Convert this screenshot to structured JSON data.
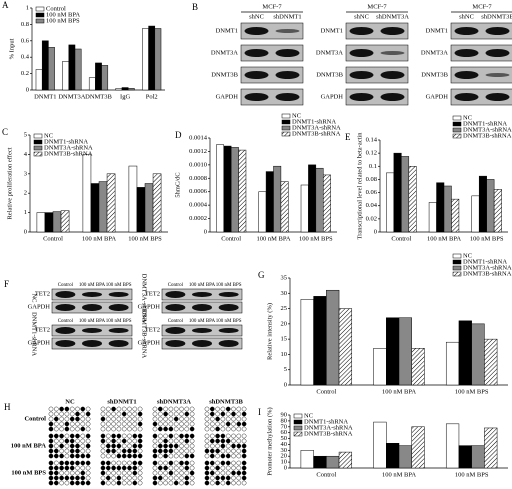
{
  "chart_data": [
    {
      "type": "bar",
      "panel": "A",
      "y_label": "% Input",
      "categories": [
        "DNMT1",
        "DNMT3A",
        "DNMT3B",
        "IgG",
        "Pol2"
      ],
      "series": [
        {
          "name": "Control",
          "color": "#ffffff",
          "values": [
            0.25,
            0.35,
            0.15,
            0.02,
            0.75
          ]
        },
        {
          "name": "100 nM BPA",
          "color": "#000000",
          "values": [
            0.6,
            0.55,
            0.33,
            0.03,
            0.78
          ]
        },
        {
          "name": "100 nM BPS",
          "color": "#888888",
          "values": [
            0.52,
            0.5,
            0.3,
            0.02,
            0.75
          ]
        }
      ],
      "ylim": [
        0,
        1
      ],
      "yticks": [
        0,
        0.2,
        0.4,
        0.6,
        0.8,
        1
      ],
      "legend": "top-left"
    },
    {
      "type": "bar",
      "panel": "C",
      "y_label": "Relative proliferation effect",
      "categories": [
        "Control",
        "100 nM BPA",
        "100 nM BPS"
      ],
      "series": [
        {
          "name": "NC",
          "color": "#ffffff",
          "values": [
            1.0,
            4.0,
            3.4
          ]
        },
        {
          "name": "DNMT1-shRNA",
          "color": "#000000",
          "values": [
            1.0,
            2.5,
            2.3
          ]
        },
        {
          "name": "DNMT3A-shRNA",
          "color": "#888888",
          "values": [
            1.05,
            2.6,
            2.5
          ]
        },
        {
          "name": "DNMT3B-shRNA",
          "color": "#ffffff",
          "hatch": true,
          "values": [
            1.1,
            3.0,
            3.0
          ]
        }
      ],
      "ylim": [
        0,
        5
      ],
      "yticks": [
        0,
        1,
        2,
        3,
        4,
        5
      ],
      "legend": "top-left"
    },
    {
      "type": "bar",
      "panel": "D",
      "y_label": "5hmC/dC",
      "categories": [
        "Control",
        "100 nM BPA",
        "100 nM BPS"
      ],
      "series": [
        {
          "name": "NC",
          "color": "#ffffff",
          "values": [
            0.0013,
            0.0006,
            0.0007
          ]
        },
        {
          "name": "DNMT1-shRNA",
          "color": "#000000",
          "values": [
            0.00128,
            0.0009,
            0.001
          ]
        },
        {
          "name": "DNMT3A-shRNA",
          "color": "#888888",
          "values": [
            0.00126,
            0.00098,
            0.00095
          ]
        },
        {
          "name": "DNMT3B-shRNA",
          "color": "#ffffff",
          "hatch": true,
          "values": [
            0.00122,
            0.00075,
            0.00085
          ]
        }
      ],
      "ylim": [
        0,
        0.0014
      ],
      "yticks": [
        0,
        0.0002,
        0.0004,
        0.0006,
        0.0008,
        {
          "value": 0.001,
          "label": "0.0010"
        },
        0.0012,
        0.0014
      ],
      "legend": "top-right"
    },
    {
      "type": "bar",
      "panel": "E",
      "y_label": "Transcriptional level related to beta-actin",
      "categories": [
        "Control",
        "100 nM BPA",
        "100 nM BPS"
      ],
      "series": [
        {
          "name": "NC",
          "color": "#ffffff",
          "values": [
            0.09,
            0.045,
            0.055
          ]
        },
        {
          "name": "DNMT1-shRNA",
          "color": "#000000",
          "values": [
            0.12,
            0.075,
            0.085
          ]
        },
        {
          "name": "DNMT3A-shRNA",
          "color": "#888888",
          "values": [
            0.115,
            0.07,
            0.08
          ]
        },
        {
          "name": "DNMT3B-shRNA",
          "color": "#ffffff",
          "hatch": true,
          "values": [
            0.1,
            0.05,
            0.065
          ]
        }
      ],
      "ylim": [
        0,
        0.14
      ],
      "yticks": [
        0,
        0.02,
        0.04,
        0.06,
        0.08,
        0.1,
        0.12,
        0.14
      ],
      "legend": "top-right"
    },
    {
      "type": "bar",
      "panel": "G",
      "y_label": "Relative intensity (%)",
      "categories": [
        "Control",
        "100 nM BPA",
        "100 nM BPS"
      ],
      "series": [
        {
          "name": "NC",
          "color": "#ffffff",
          "values": [
            28,
            12,
            14
          ]
        },
        {
          "name": "DNMT1-shRNA",
          "color": "#000000",
          "values": [
            29,
            22,
            21
          ]
        },
        {
          "name": "DNMT3A-shRNA",
          "color": "#888888",
          "values": [
            31,
            22,
            20
          ]
        },
        {
          "name": "DNMT3B-shRNA",
          "color": "#ffffff",
          "hatch": true,
          "values": [
            25,
            12,
            15
          ]
        }
      ],
      "ylim": [
        0,
        35
      ],
      "yticks": [
        0,
        5,
        10,
        15,
        20,
        25,
        30,
        35
      ],
      "legend": "top-right"
    },
    {
      "type": "bar",
      "panel": "I",
      "y_label": "Promoter methylation (%)",
      "categories": [
        "Control",
        "100 nM BPA",
        "100 nM BPS"
      ],
      "series": [
        {
          "name": "NC",
          "color": "#ffffff",
          "values": [
            30,
            78,
            75
          ]
        },
        {
          "name": "DNMT1-shRNA",
          "color": "#000000",
          "values": [
            20,
            42,
            38
          ]
        },
        {
          "name": "DNMT3A-shRNA",
          "color": "#888888",
          "values": [
            20,
            38,
            38
          ]
        },
        {
          "name": "DNMT3B-shRNA",
          "color": "#ffffff",
          "hatch": true,
          "values": [
            27,
            70,
            68
          ]
        }
      ],
      "ylim": [
        0,
        90
      ],
      "yticks": [
        0,
        10,
        20,
        30,
        40,
        50,
        60,
        70,
        80,
        90
      ],
      "legend": "top-left"
    }
  ],
  "blots_b": {
    "panel": "B",
    "groups": [
      {
        "cell": "MCF-7",
        "lanes": [
          "shNC",
          "shDNMT1"
        ],
        "proteins": [
          "DNMT1",
          "DNMT3A",
          "DNMT3B",
          "GAPDH"
        ]
      },
      {
        "cell": "MCF-7",
        "lanes": [
          "shNC",
          "shDNMT3A"
        ],
        "proteins": [
          "DNMT1",
          "DNMT3A",
          "DNMT3B",
          "GAPDH"
        ]
      },
      {
        "cell": "MCF-7",
        "lanes": [
          "shNC",
          "shDNMT3B"
        ],
        "proteins": [
          "DNMT1",
          "DNMT3A",
          "DNMT3B",
          "GAPDH"
        ]
      }
    ]
  },
  "blots_f": {
    "panel": "F",
    "lanes": [
      "Control",
      "100 nM BPA",
      "100 nM BPS"
    ],
    "groups": [
      {
        "label": "NC",
        "proteins": [
          "TET2",
          "GAPDH"
        ]
      },
      {
        "label": "DNMT3A-shRNA",
        "proteins": [
          "TET2",
          "GAPDH"
        ]
      },
      {
        "label": "DNMT1-shRNA",
        "proteins": [
          "TET2",
          "GAPDH"
        ]
      },
      {
        "label": "DNMT3B-shRNA",
        "proteins": [
          "TET2",
          "GAPDH"
        ]
      }
    ]
  },
  "methylation_h": {
    "panel": "H",
    "columns": [
      "NC",
      "shDNMT1",
      "shDNMT3A",
      "shDNMT3B"
    ],
    "rows": [
      "Control",
      "100 nM BPA",
      "100 nM BPS"
    ]
  }
}
